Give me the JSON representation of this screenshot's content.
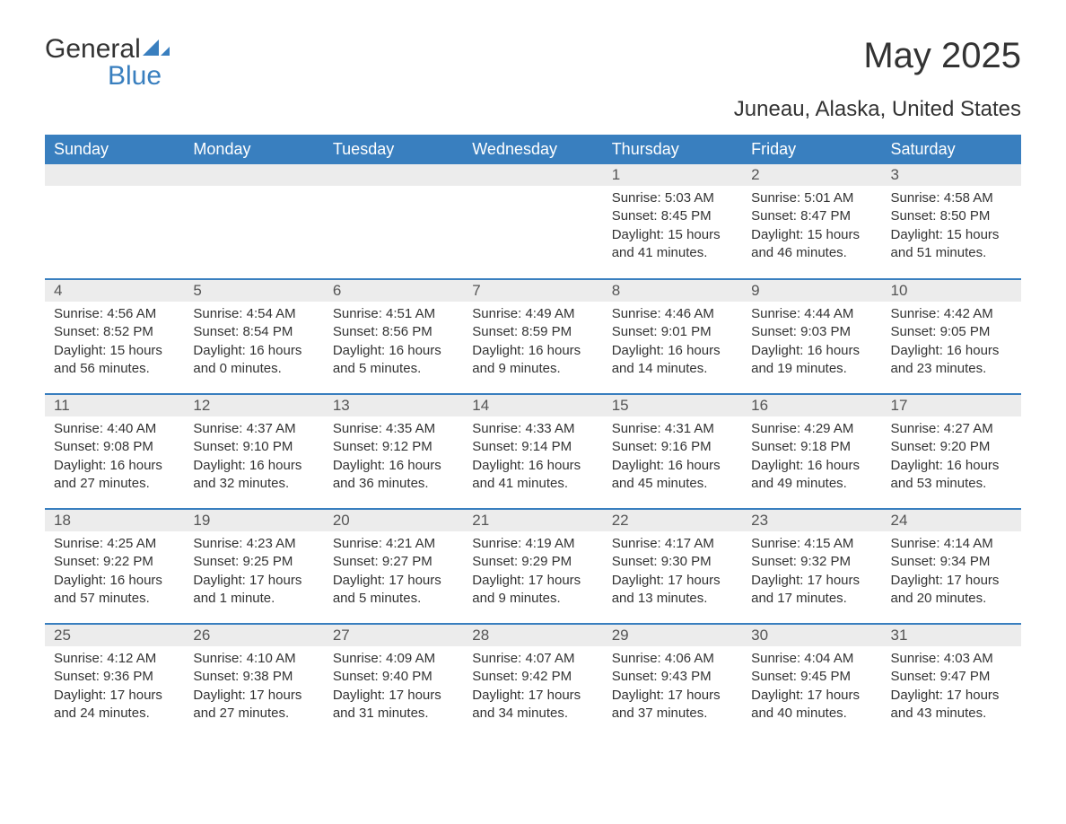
{
  "logo": {
    "text_general": "General",
    "text_blue": "Blue",
    "icon_color": "#397fbf"
  },
  "title": "May 2025",
  "location": "Juneau, Alaska, United States",
  "colors": {
    "header_bg": "#397fbf",
    "header_text": "#ffffff",
    "daynum_bg": "#ececec",
    "body_text": "#333333",
    "row_border": "#397fbf",
    "page_bg": "#ffffff"
  },
  "typography": {
    "title_fontsize": 40,
    "location_fontsize": 24,
    "header_fontsize": 18,
    "daynum_fontsize": 17,
    "body_fontsize": 15,
    "font_family": "Arial"
  },
  "columns": [
    "Sunday",
    "Monday",
    "Tuesday",
    "Wednesday",
    "Thursday",
    "Friday",
    "Saturday"
  ],
  "weeks": [
    [
      null,
      null,
      null,
      null,
      {
        "day": "1",
        "sunrise": "5:03 AM",
        "sunset": "8:45 PM",
        "daylight": "15 hours and 41 minutes."
      },
      {
        "day": "2",
        "sunrise": "5:01 AM",
        "sunset": "8:47 PM",
        "daylight": "15 hours and 46 minutes."
      },
      {
        "day": "3",
        "sunrise": "4:58 AM",
        "sunset": "8:50 PM",
        "daylight": "15 hours and 51 minutes."
      }
    ],
    [
      {
        "day": "4",
        "sunrise": "4:56 AM",
        "sunset": "8:52 PM",
        "daylight": "15 hours and 56 minutes."
      },
      {
        "day": "5",
        "sunrise": "4:54 AM",
        "sunset": "8:54 PM",
        "daylight": "16 hours and 0 minutes."
      },
      {
        "day": "6",
        "sunrise": "4:51 AM",
        "sunset": "8:56 PM",
        "daylight": "16 hours and 5 minutes."
      },
      {
        "day": "7",
        "sunrise": "4:49 AM",
        "sunset": "8:59 PM",
        "daylight": "16 hours and 9 minutes."
      },
      {
        "day": "8",
        "sunrise": "4:46 AM",
        "sunset": "9:01 PM",
        "daylight": "16 hours and 14 minutes."
      },
      {
        "day": "9",
        "sunrise": "4:44 AM",
        "sunset": "9:03 PM",
        "daylight": "16 hours and 19 minutes."
      },
      {
        "day": "10",
        "sunrise": "4:42 AM",
        "sunset": "9:05 PM",
        "daylight": "16 hours and 23 minutes."
      }
    ],
    [
      {
        "day": "11",
        "sunrise": "4:40 AM",
        "sunset": "9:08 PM",
        "daylight": "16 hours and 27 minutes."
      },
      {
        "day": "12",
        "sunrise": "4:37 AM",
        "sunset": "9:10 PM",
        "daylight": "16 hours and 32 minutes."
      },
      {
        "day": "13",
        "sunrise": "4:35 AM",
        "sunset": "9:12 PM",
        "daylight": "16 hours and 36 minutes."
      },
      {
        "day": "14",
        "sunrise": "4:33 AM",
        "sunset": "9:14 PM",
        "daylight": "16 hours and 41 minutes."
      },
      {
        "day": "15",
        "sunrise": "4:31 AM",
        "sunset": "9:16 PM",
        "daylight": "16 hours and 45 minutes."
      },
      {
        "day": "16",
        "sunrise": "4:29 AM",
        "sunset": "9:18 PM",
        "daylight": "16 hours and 49 minutes."
      },
      {
        "day": "17",
        "sunrise": "4:27 AM",
        "sunset": "9:20 PM",
        "daylight": "16 hours and 53 minutes."
      }
    ],
    [
      {
        "day": "18",
        "sunrise": "4:25 AM",
        "sunset": "9:22 PM",
        "daylight": "16 hours and 57 minutes."
      },
      {
        "day": "19",
        "sunrise": "4:23 AM",
        "sunset": "9:25 PM",
        "daylight": "17 hours and 1 minute."
      },
      {
        "day": "20",
        "sunrise": "4:21 AM",
        "sunset": "9:27 PM",
        "daylight": "17 hours and 5 minutes."
      },
      {
        "day": "21",
        "sunrise": "4:19 AM",
        "sunset": "9:29 PM",
        "daylight": "17 hours and 9 minutes."
      },
      {
        "day": "22",
        "sunrise": "4:17 AM",
        "sunset": "9:30 PM",
        "daylight": "17 hours and 13 minutes."
      },
      {
        "day": "23",
        "sunrise": "4:15 AM",
        "sunset": "9:32 PM",
        "daylight": "17 hours and 17 minutes."
      },
      {
        "day": "24",
        "sunrise": "4:14 AM",
        "sunset": "9:34 PM",
        "daylight": "17 hours and 20 minutes."
      }
    ],
    [
      {
        "day": "25",
        "sunrise": "4:12 AM",
        "sunset": "9:36 PM",
        "daylight": "17 hours and 24 minutes."
      },
      {
        "day": "26",
        "sunrise": "4:10 AM",
        "sunset": "9:38 PM",
        "daylight": "17 hours and 27 minutes."
      },
      {
        "day": "27",
        "sunrise": "4:09 AM",
        "sunset": "9:40 PM",
        "daylight": "17 hours and 31 minutes."
      },
      {
        "day": "28",
        "sunrise": "4:07 AM",
        "sunset": "9:42 PM",
        "daylight": "17 hours and 34 minutes."
      },
      {
        "day": "29",
        "sunrise": "4:06 AM",
        "sunset": "9:43 PM",
        "daylight": "17 hours and 37 minutes."
      },
      {
        "day": "30",
        "sunrise": "4:04 AM",
        "sunset": "9:45 PM",
        "daylight": "17 hours and 40 minutes."
      },
      {
        "day": "31",
        "sunrise": "4:03 AM",
        "sunset": "9:47 PM",
        "daylight": "17 hours and 43 minutes."
      }
    ]
  ],
  "labels": {
    "sunrise": "Sunrise:",
    "sunset": "Sunset:",
    "daylight": "Daylight:"
  }
}
